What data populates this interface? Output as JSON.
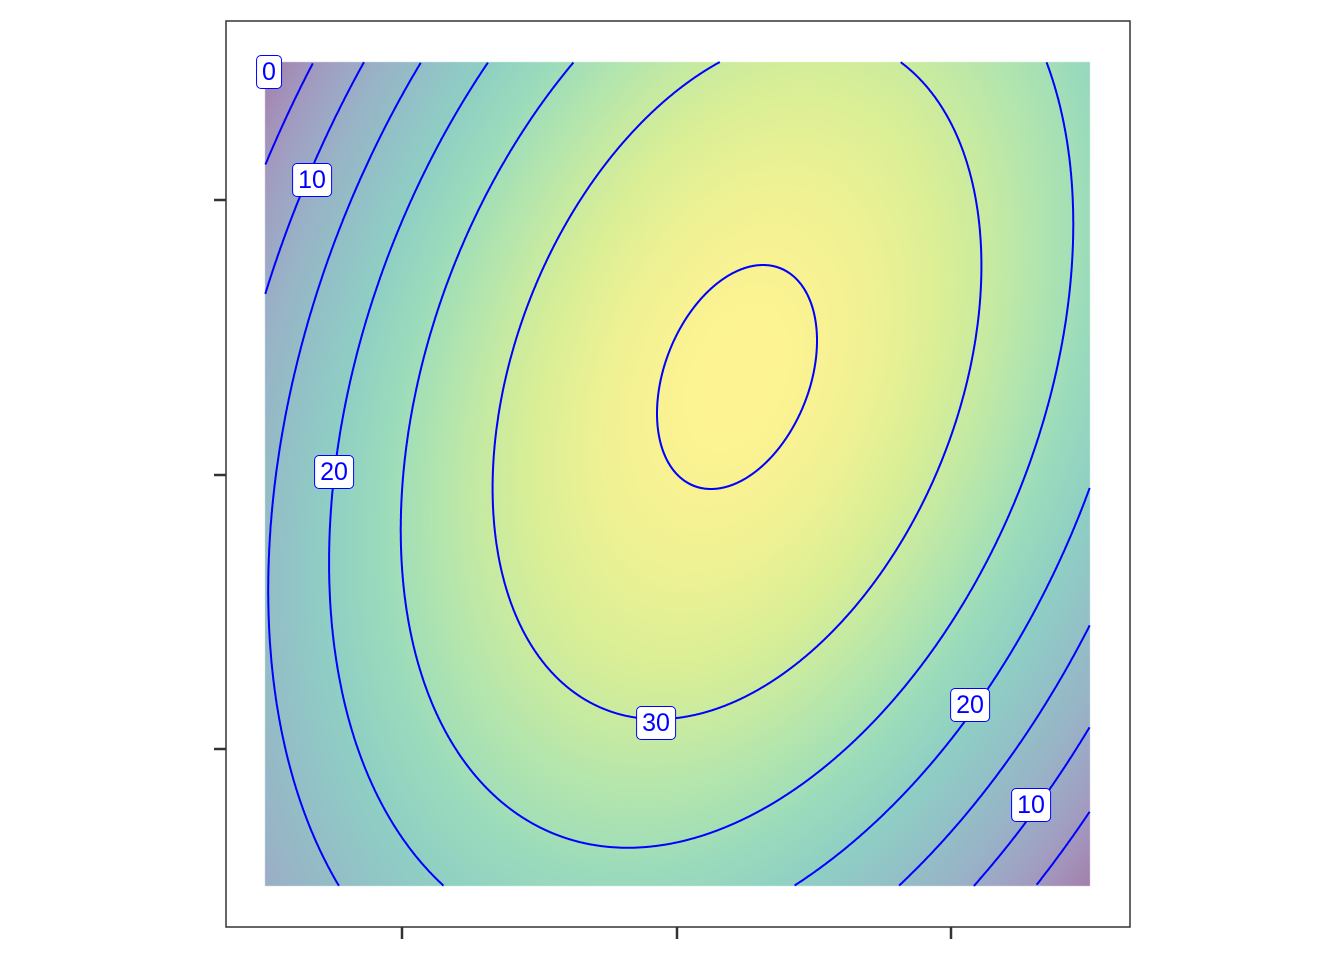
{
  "chart_data": {
    "type": "contour",
    "title": "",
    "xlabel": "",
    "ylabel": "",
    "x_tick_count": 3,
    "y_tick_count": 3,
    "tick_labels_shown": false,
    "grid": false,
    "legend": "none",
    "fill_palette": "viridis",
    "fill_alpha": 0.5,
    "z_range": [
      0,
      35.6
    ],
    "contour_levels": [
      0,
      5,
      10,
      15,
      20,
      25,
      30,
      35
    ],
    "contour_color": "#0000ff",
    "labels": [
      {
        "text": "0"
      },
      {
        "text": "10"
      },
      {
        "text": "20"
      },
      {
        "text": "30"
      },
      {
        "text": "20"
      },
      {
        "text": "10"
      }
    ]
  }
}
